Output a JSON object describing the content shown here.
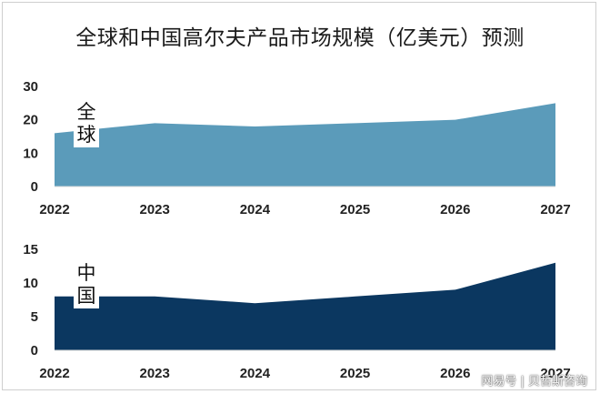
{
  "title": "全球和中国高尔夫产品市场规模（亿美元）预测",
  "footer": "网易号 | 贝哲斯咨询",
  "chart_data": [
    {
      "type": "area",
      "series": [
        {
          "name": "全球",
          "values": [
            16,
            19,
            18,
            19,
            20,
            25
          ]
        }
      ],
      "x": [
        "2022",
        "2023",
        "2024",
        "2025",
        "2026",
        "2027"
      ],
      "ylim": [
        0,
        30
      ],
      "yticks": [
        0,
        10,
        20,
        30
      ],
      "color": "#5b9bba",
      "label_chars": [
        "全",
        "球"
      ]
    },
    {
      "type": "area",
      "series": [
        {
          "name": "中国",
          "values": [
            8,
            8,
            7,
            8,
            9,
            13
          ]
        }
      ],
      "x": [
        "2022",
        "2023",
        "2024",
        "2025",
        "2026",
        "2027"
      ],
      "ylim": [
        0,
        15
      ],
      "yticks": [
        0,
        5,
        10,
        15
      ],
      "color": "#0b3760",
      "label_chars": [
        "中",
        "国"
      ]
    }
  ]
}
